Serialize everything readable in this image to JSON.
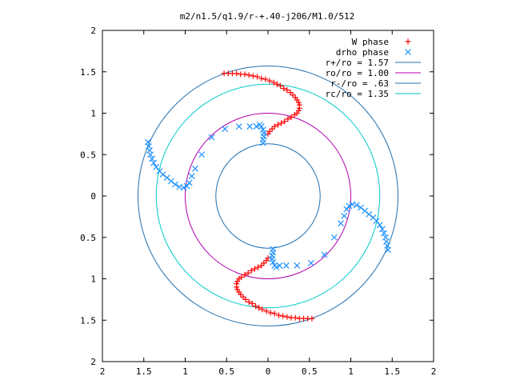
{
  "chart_data": {
    "type": "scatter",
    "title": "m2/n1.5/q1.9/r-+.40-j206/M1.0/512",
    "xlabel": "",
    "ylabel": "",
    "xlim": [
      -2,
      2
    ],
    "ylim": [
      -2,
      2
    ],
    "x_tick_values": [
      -2,
      -1.5,
      -1,
      -0.5,
      0,
      0.5,
      1,
      1.5,
      2
    ],
    "x_tick_labels": [
      "2",
      "1.5",
      "1",
      "0.5",
      "0",
      "0.5",
      "1",
      "1.5",
      "2"
    ],
    "y_tick_values": [
      2,
      1.5,
      1,
      0.5,
      0,
      -0.5,
      -1,
      -1.5,
      -2
    ],
    "y_tick_labels": [
      "2",
      "1.5",
      "1",
      "0.5",
      "0",
      "0.5",
      "1",
      "1.5",
      "2"
    ],
    "grid": false,
    "legend_position": "top-right",
    "circles": [
      {
        "label": "r+/ro = 1.57",
        "radius": 1.57,
        "color": "#1f6fb0"
      },
      {
        "label": "ro/ro = 1.00",
        "radius": 1.0,
        "color": "#b000b0"
      },
      {
        "label": "r-/ro = .63",
        "radius": 0.63,
        "color": "#1f6fb0"
      },
      {
        "label": "rc/ro = 1.35",
        "radius": 1.35,
        "color": "#00c8c8"
      }
    ],
    "series": [
      {
        "name": "W phase",
        "marker": "plus",
        "color": "#ff0000",
        "points": [
          [
            -0.53,
            1.48
          ],
          [
            -0.48,
            1.48
          ],
          [
            -0.43,
            1.48
          ],
          [
            -0.38,
            1.48
          ],
          [
            -0.33,
            1.47
          ],
          [
            -0.28,
            1.47
          ],
          [
            -0.23,
            1.46
          ],
          [
            -0.18,
            1.45
          ],
          [
            -0.13,
            1.44
          ],
          [
            -0.08,
            1.42
          ],
          [
            -0.03,
            1.41
          ],
          [
            0.02,
            1.39
          ],
          [
            0.07,
            1.37
          ],
          [
            0.11,
            1.35
          ],
          [
            0.15,
            1.33
          ],
          [
            0.19,
            1.3
          ],
          [
            0.23,
            1.28
          ],
          [
            0.27,
            1.25
          ],
          [
            0.3,
            1.22
          ],
          [
            0.33,
            1.19
          ],
          [
            0.35,
            1.16
          ],
          [
            0.37,
            1.13
          ],
          [
            0.38,
            1.1
          ],
          [
            0.38,
            1.06
          ],
          [
            0.37,
            1.03
          ],
          [
            0.35,
            1.0
          ],
          [
            0.32,
            0.98
          ],
          [
            0.28,
            0.95
          ],
          [
            0.24,
            0.93
          ],
          [
            0.2,
            0.9
          ],
          [
            0.16,
            0.88
          ],
          [
            0.12,
            0.86
          ],
          [
            0.08,
            0.84
          ],
          [
            0.05,
            0.81
          ],
          [
            0.02,
            0.78
          ],
          [
            0.0,
            0.75
          ],
          [
            0.53,
            -1.48
          ],
          [
            0.48,
            -1.48
          ],
          [
            0.43,
            -1.48
          ],
          [
            0.38,
            -1.48
          ],
          [
            0.33,
            -1.47
          ],
          [
            0.28,
            -1.47
          ],
          [
            0.23,
            -1.46
          ],
          [
            0.18,
            -1.45
          ],
          [
            0.13,
            -1.44
          ],
          [
            0.08,
            -1.42
          ],
          [
            0.03,
            -1.41
          ],
          [
            -0.02,
            -1.39
          ],
          [
            -0.07,
            -1.37
          ],
          [
            -0.11,
            -1.35
          ],
          [
            -0.15,
            -1.33
          ],
          [
            -0.19,
            -1.3
          ],
          [
            -0.23,
            -1.28
          ],
          [
            -0.27,
            -1.25
          ],
          [
            -0.3,
            -1.22
          ],
          [
            -0.33,
            -1.19
          ],
          [
            -0.35,
            -1.16
          ],
          [
            -0.37,
            -1.13
          ],
          [
            -0.38,
            -1.1
          ],
          [
            -0.38,
            -1.06
          ],
          [
            -0.37,
            -1.03
          ],
          [
            -0.35,
            -1.0
          ],
          [
            -0.32,
            -0.98
          ],
          [
            -0.28,
            -0.95
          ],
          [
            -0.24,
            -0.93
          ],
          [
            -0.2,
            -0.9
          ],
          [
            -0.16,
            -0.88
          ],
          [
            -0.12,
            -0.86
          ],
          [
            -0.08,
            -0.84
          ],
          [
            -0.05,
            -0.81
          ],
          [
            -0.02,
            -0.78
          ],
          [
            0.0,
            -0.75
          ]
        ]
      },
      {
        "name": "drho phase",
        "marker": "cross",
        "color": "#1e90ff",
        "points": [
          [
            -1.45,
            0.65
          ],
          [
            -1.44,
            0.6
          ],
          [
            -1.43,
            0.55
          ],
          [
            -1.42,
            0.5
          ],
          [
            -1.4,
            0.45
          ],
          [
            -1.38,
            0.4
          ],
          [
            -1.35,
            0.35
          ],
          [
            -1.31,
            0.3
          ],
          [
            -1.27,
            0.26
          ],
          [
            -1.22,
            0.22
          ],
          [
            -1.17,
            0.18
          ],
          [
            -1.12,
            0.14
          ],
          [
            -1.07,
            0.11
          ],
          [
            -1.02,
            0.1
          ],
          [
            -0.98,
            0.12
          ],
          [
            -0.95,
            0.16
          ],
          [
            -0.92,
            0.24
          ],
          [
            -0.88,
            0.33
          ],
          [
            -0.8,
            0.5
          ],
          [
            -0.68,
            0.71
          ],
          [
            -0.52,
            0.81
          ],
          [
            -0.35,
            0.84
          ],
          [
            -0.22,
            0.84
          ],
          [
            -0.14,
            0.84
          ],
          [
            -0.1,
            0.86
          ],
          [
            -0.08,
            0.84
          ],
          [
            -0.06,
            0.8
          ],
          [
            -0.05,
            0.76
          ],
          [
            -0.05,
            0.72
          ],
          [
            -0.06,
            0.68
          ],
          [
            -0.06,
            0.64
          ],
          [
            1.45,
            -0.65
          ],
          [
            1.44,
            -0.6
          ],
          [
            1.43,
            -0.55
          ],
          [
            1.42,
            -0.5
          ],
          [
            1.4,
            -0.45
          ],
          [
            1.38,
            -0.4
          ],
          [
            1.35,
            -0.35
          ],
          [
            1.31,
            -0.3
          ],
          [
            1.27,
            -0.26
          ],
          [
            1.22,
            -0.22
          ],
          [
            1.17,
            -0.18
          ],
          [
            1.12,
            -0.14
          ],
          [
            1.07,
            -0.11
          ],
          [
            1.02,
            -0.1
          ],
          [
            0.98,
            -0.12
          ],
          [
            0.95,
            -0.16
          ],
          [
            0.92,
            -0.24
          ],
          [
            0.88,
            -0.33
          ],
          [
            0.8,
            -0.5
          ],
          [
            0.68,
            -0.71
          ],
          [
            0.52,
            -0.81
          ],
          [
            0.35,
            -0.84
          ],
          [
            0.22,
            -0.84
          ],
          [
            0.14,
            -0.84
          ],
          [
            0.1,
            -0.86
          ],
          [
            0.08,
            -0.84
          ],
          [
            0.06,
            -0.8
          ],
          [
            0.05,
            -0.76
          ],
          [
            0.05,
            -0.72
          ],
          [
            0.06,
            -0.68
          ],
          [
            0.06,
            -0.64
          ]
        ]
      }
    ]
  }
}
